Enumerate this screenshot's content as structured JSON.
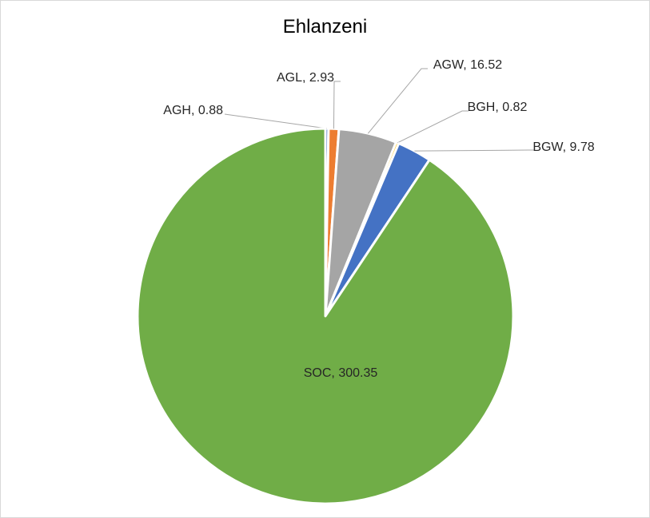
{
  "chart_data": {
    "type": "pie",
    "title": "Ehlanzeni",
    "slices": [
      {
        "name": "AGH",
        "value": 0.88,
        "label": "AGH, 0.88",
        "color": "#4472C4"
      },
      {
        "name": "AGL",
        "value": 2.93,
        "label": "AGL, 2.93",
        "color": "#ED7D31"
      },
      {
        "name": "AGW",
        "value": 16.52,
        "label": "AGW, 16.52",
        "color": "#A5A5A5"
      },
      {
        "name": "BGH",
        "value": 0.82,
        "label": "BGH, 0.82",
        "color": "#FFC000"
      },
      {
        "name": "BGW",
        "value": 9.78,
        "label": "BGW, 9.78",
        "color": "#4472C4"
      },
      {
        "name": "SOC",
        "value": 300.35,
        "label": "SOC, 300.35",
        "color": "#70AD47"
      }
    ],
    "legend": "none",
    "data_labels": "category, value"
  }
}
